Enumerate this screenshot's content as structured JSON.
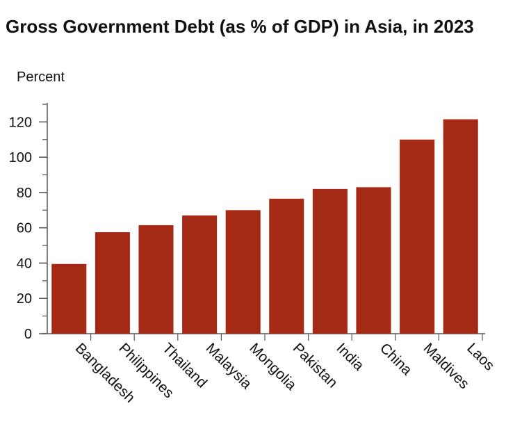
{
  "chart_data": {
    "type": "bar",
    "title": "Gross Government Debt (as % of GDP) in Asia, in 2023",
    "ylabel": "Percent",
    "xlabel": "",
    "categories": [
      "Bangladesh",
      "Philippines",
      "Thailand",
      "Malaysia",
      "Mongolia",
      "Pakistan",
      "India",
      "China",
      "Maldives",
      "Laos"
    ],
    "values": [
      39.5,
      57.5,
      61.5,
      67,
      70,
      76.5,
      82,
      83,
      110,
      121.5
    ],
    "ylim": [
      0,
      130
    ],
    "yticks": [
      0,
      20,
      40,
      60,
      80,
      100,
      120
    ],
    "grid": false,
    "bar_color": "#a52a16"
  }
}
